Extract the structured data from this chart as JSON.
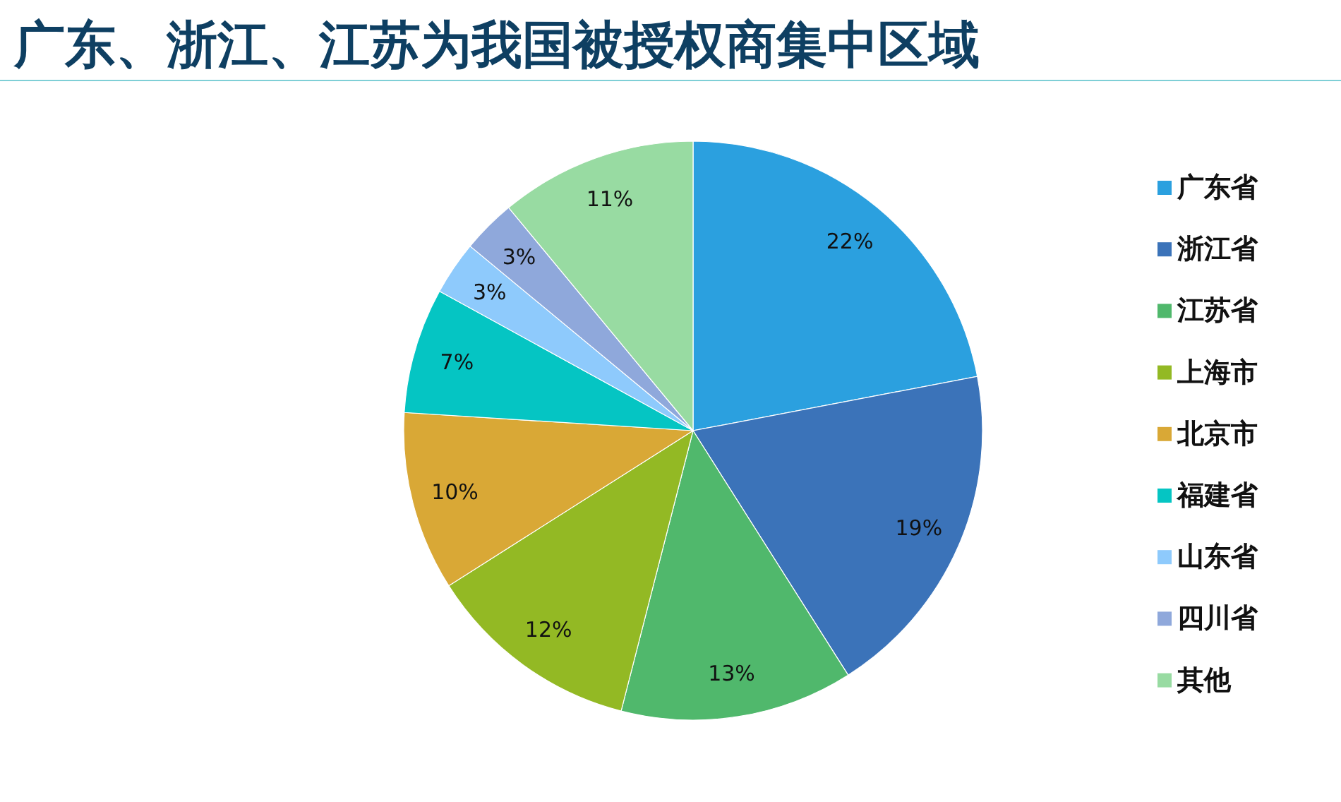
{
  "chart_data": {
    "type": "pie",
    "title": "广东、浙江、江苏为我国被授权商集中区域",
    "categories": [
      "广东省",
      "浙江省",
      "江苏省",
      "上海市",
      "北京市",
      "福建省",
      "山东省",
      "四川省",
      "其他"
    ],
    "values": [
      22,
      19,
      13,
      12,
      10,
      7,
      3,
      3,
      11
    ],
    "colors": [
      "#2ba0df",
      "#3b73b9",
      "#50b86c",
      "#93b924",
      "#d9a836",
      "#05c5c3",
      "#8ecafc",
      "#8fa8db",
      "#98dba2"
    ],
    "value_labels": [
      "22%",
      "19%",
      "13%",
      "12%",
      "10%",
      "7%",
      "3%",
      "3%",
      "11%"
    ],
    "legend": "right"
  }
}
